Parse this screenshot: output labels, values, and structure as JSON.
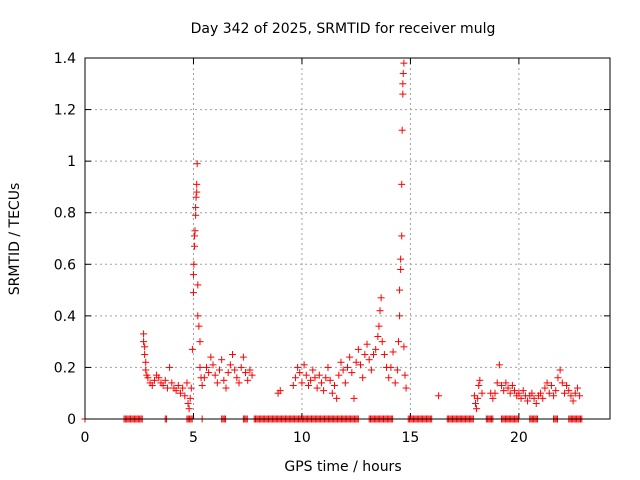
{
  "chart_data": {
    "type": "scatter",
    "title": "Day 342 of 2025, SRMTID for receiver mulg",
    "xlabel": "GPS time / hours",
    "ylabel": "SRMTID / TECUs",
    "xlim": [
      0,
      24.2
    ],
    "ylim": [
      0,
      1.4
    ],
    "xticks": [
      0,
      5,
      10,
      15,
      20
    ],
    "yticks": [
      0,
      0.2,
      0.4,
      0.6,
      0.8,
      1,
      1.2,
      1.4
    ],
    "ytick_labels": [
      "0",
      "0.2",
      "0.4",
      "0.6",
      "0.8",
      "1",
      "1.2",
      "1.4"
    ],
    "grid": true,
    "marker": "+",
    "marker_color": "#ff0000",
    "series": [
      {
        "name": "SRMTID",
        "points": [
          [
            2.7,
            0.33
          ],
          [
            2.7,
            0.3
          ],
          [
            2.75,
            0.28
          ],
          [
            2.75,
            0.25
          ],
          [
            2.8,
            0.22
          ],
          [
            2.8,
            0.19
          ],
          [
            2.85,
            0.17
          ],
          [
            2.9,
            0.16
          ],
          [
            3.0,
            0.14
          ],
          [
            3.1,
            0.13
          ],
          [
            3.2,
            0.15
          ],
          [
            3.3,
            0.17
          ],
          [
            3.4,
            0.16
          ],
          [
            3.5,
            0.14
          ],
          [
            3.6,
            0.13
          ],
          [
            3.7,
            0.15
          ],
          [
            3.8,
            0.12
          ],
          [
            3.9,
            0.2
          ],
          [
            4.0,
            0.14
          ],
          [
            4.1,
            0.12
          ],
          [
            4.2,
            0.11
          ],
          [
            4.3,
            0.13
          ],
          [
            4.4,
            0.1
          ],
          [
            4.5,
            0.12
          ],
          [
            4.6,
            0.09
          ],
          [
            4.7,
            0.14
          ],
          [
            4.75,
            0.06
          ],
          [
            4.8,
            0.04
          ],
          [
            4.85,
            0.08
          ],
          [
            4.9,
            0.12
          ],
          [
            4.95,
            0.27
          ],
          [
            5.0,
            0.49
          ],
          [
            5.0,
            0.56
          ],
          [
            5.02,
            0.6
          ],
          [
            5.05,
            0.67
          ],
          [
            5.05,
            0.71
          ],
          [
            5.07,
            0.73
          ],
          [
            5.1,
            0.79
          ],
          [
            5.1,
            0.82
          ],
          [
            5.12,
            0.86
          ],
          [
            5.15,
            0.88
          ],
          [
            5.15,
            0.91
          ],
          [
            5.17,
            0.99
          ],
          [
            5.2,
            0.52
          ],
          [
            5.2,
            0.4
          ],
          [
            5.25,
            0.36
          ],
          [
            5.3,
            0.3
          ],
          [
            5.3,
            0.2
          ],
          [
            5.35,
            0.16
          ],
          [
            5.4,
            0.13
          ],
          [
            5.5,
            0.16
          ],
          [
            5.6,
            0.2
          ],
          [
            5.7,
            0.18
          ],
          [
            5.8,
            0.24
          ],
          [
            5.9,
            0.21
          ],
          [
            6.0,
            0.17
          ],
          [
            6.1,
            0.14
          ],
          [
            6.2,
            0.19
          ],
          [
            6.3,
            0.23
          ],
          [
            6.4,
            0.15
          ],
          [
            6.5,
            0.12
          ],
          [
            6.6,
            0.18
          ],
          [
            6.7,
            0.21
          ],
          [
            6.8,
            0.25
          ],
          [
            6.9,
            0.19
          ],
          [
            7.0,
            0.16
          ],
          [
            7.1,
            0.14
          ],
          [
            7.2,
            0.2
          ],
          [
            7.3,
            0.24
          ],
          [
            7.4,
            0.18
          ],
          [
            7.5,
            0.15
          ],
          [
            7.6,
            0.19
          ],
          [
            7.7,
            0.17
          ],
          [
            8.9,
            0.1
          ],
          [
            9.0,
            0.11
          ],
          [
            9.6,
            0.13
          ],
          [
            9.7,
            0.16
          ],
          [
            9.8,
            0.2
          ],
          [
            9.9,
            0.18
          ],
          [
            10.0,
            0.14
          ],
          [
            10.1,
            0.21
          ],
          [
            10.2,
            0.17
          ],
          [
            10.3,
            0.13
          ],
          [
            10.4,
            0.15
          ],
          [
            10.5,
            0.19
          ],
          [
            10.6,
            0.16
          ],
          [
            10.7,
            0.12
          ],
          [
            10.8,
            0.17
          ],
          [
            10.9,
            0.14
          ],
          [
            11.0,
            0.11
          ],
          [
            11.1,
            0.16
          ],
          [
            11.2,
            0.2
          ],
          [
            11.3,
            0.15
          ],
          [
            11.4,
            0.1
          ],
          [
            11.5,
            0.13
          ],
          [
            11.6,
            0.08
          ],
          [
            11.7,
            0.17
          ],
          [
            11.8,
            0.22
          ],
          [
            11.9,
            0.19
          ],
          [
            12.0,
            0.14
          ],
          [
            12.1,
            0.2
          ],
          [
            12.2,
            0.24
          ],
          [
            12.3,
            0.18
          ],
          [
            12.4,
            0.08
          ],
          [
            12.5,
            0.22
          ],
          [
            12.6,
            0.27
          ],
          [
            12.7,
            0.21
          ],
          [
            12.8,
            0.16
          ],
          [
            12.9,
            0.25
          ],
          [
            13.0,
            0.29
          ],
          [
            13.1,
            0.23
          ],
          [
            13.2,
            0.19
          ],
          [
            13.3,
            0.25
          ],
          [
            13.4,
            0.27
          ],
          [
            13.5,
            0.32
          ],
          [
            13.55,
            0.36
          ],
          [
            13.6,
            0.42
          ],
          [
            13.65,
            0.47
          ],
          [
            13.7,
            0.3
          ],
          [
            13.8,
            0.25
          ],
          [
            13.9,
            0.2
          ],
          [
            14.0,
            0.16
          ],
          [
            14.1,
            0.2
          ],
          [
            14.2,
            0.26
          ],
          [
            14.3,
            0.14
          ],
          [
            14.4,
            0.19
          ],
          [
            14.45,
            0.3
          ],
          [
            14.5,
            0.4
          ],
          [
            14.5,
            0.5
          ],
          [
            14.55,
            0.58
          ],
          [
            14.55,
            0.62
          ],
          [
            14.6,
            0.71
          ],
          [
            14.6,
            0.91
          ],
          [
            14.62,
            1.12
          ],
          [
            14.65,
            1.26
          ],
          [
            14.65,
            1.3
          ],
          [
            14.67,
            1.34
          ],
          [
            14.7,
            1.38
          ],
          [
            14.7,
            0.28
          ],
          [
            14.75,
            0.17
          ],
          [
            14.8,
            0.12
          ],
          [
            16.3,
            0.09
          ],
          [
            17.95,
            0.09
          ],
          [
            18.0,
            0.06
          ],
          [
            18.05,
            0.04
          ],
          [
            18.1,
            0.08
          ],
          [
            18.15,
            0.13
          ],
          [
            18.2,
            0.15
          ],
          [
            18.3,
            0.1
          ],
          [
            18.7,
            0.1
          ],
          [
            18.8,
            0.08
          ],
          [
            18.9,
            0.1
          ],
          [
            19.0,
            0.14
          ],
          [
            19.1,
            0.21
          ],
          [
            19.2,
            0.13
          ],
          [
            19.3,
            0.11
          ],
          [
            19.4,
            0.14
          ],
          [
            19.5,
            0.12
          ],
          [
            19.6,
            0.1
          ],
          [
            19.7,
            0.13
          ],
          [
            19.8,
            0.11
          ],
          [
            19.9,
            0.09
          ],
          [
            20.0,
            0.1
          ],
          [
            20.1,
            0.08
          ],
          [
            20.2,
            0.11
          ],
          [
            20.3,
            0.09
          ],
          [
            20.4,
            0.07
          ],
          [
            20.5,
            0.09
          ],
          [
            20.6,
            0.1
          ],
          [
            20.7,
            0.08
          ],
          [
            20.8,
            0.06
          ],
          [
            20.9,
            0.09
          ],
          [
            21.0,
            0.1
          ],
          [
            21.1,
            0.08
          ],
          [
            21.2,
            0.12
          ],
          [
            21.3,
            0.14
          ],
          [
            21.4,
            0.1
          ],
          [
            21.5,
            0.13
          ],
          [
            21.6,
            0.09
          ],
          [
            21.7,
            0.11
          ],
          [
            21.8,
            0.16
          ],
          [
            21.9,
            0.19
          ],
          [
            22.0,
            0.14
          ],
          [
            22.1,
            0.1
          ],
          [
            22.2,
            0.13
          ],
          [
            22.3,
            0.11
          ],
          [
            22.4,
            0.09
          ],
          [
            22.5,
            0.07
          ],
          [
            22.6,
            0.1
          ],
          [
            22.7,
            0.12
          ],
          [
            22.8,
            0.09
          ]
        ],
        "zero_ranges": [
          [
            0,
            0.05
          ],
          [
            1.8,
            2.65
          ],
          [
            3.7,
            3.8
          ],
          [
            4.7,
            4.95
          ],
          [
            5.4,
            5.45
          ],
          [
            6.3,
            6.5
          ],
          [
            7.3,
            7.5
          ],
          [
            7.8,
            12.6
          ],
          [
            13.1,
            14.2
          ],
          [
            14.9,
            16.0
          ],
          [
            16.7,
            17.9
          ],
          [
            18.5,
            18.8
          ],
          [
            19.2,
            20.0
          ],
          [
            20.5,
            20.9
          ],
          [
            21.6,
            21.8
          ],
          [
            22.3,
            22.9
          ]
        ]
      }
    ]
  }
}
